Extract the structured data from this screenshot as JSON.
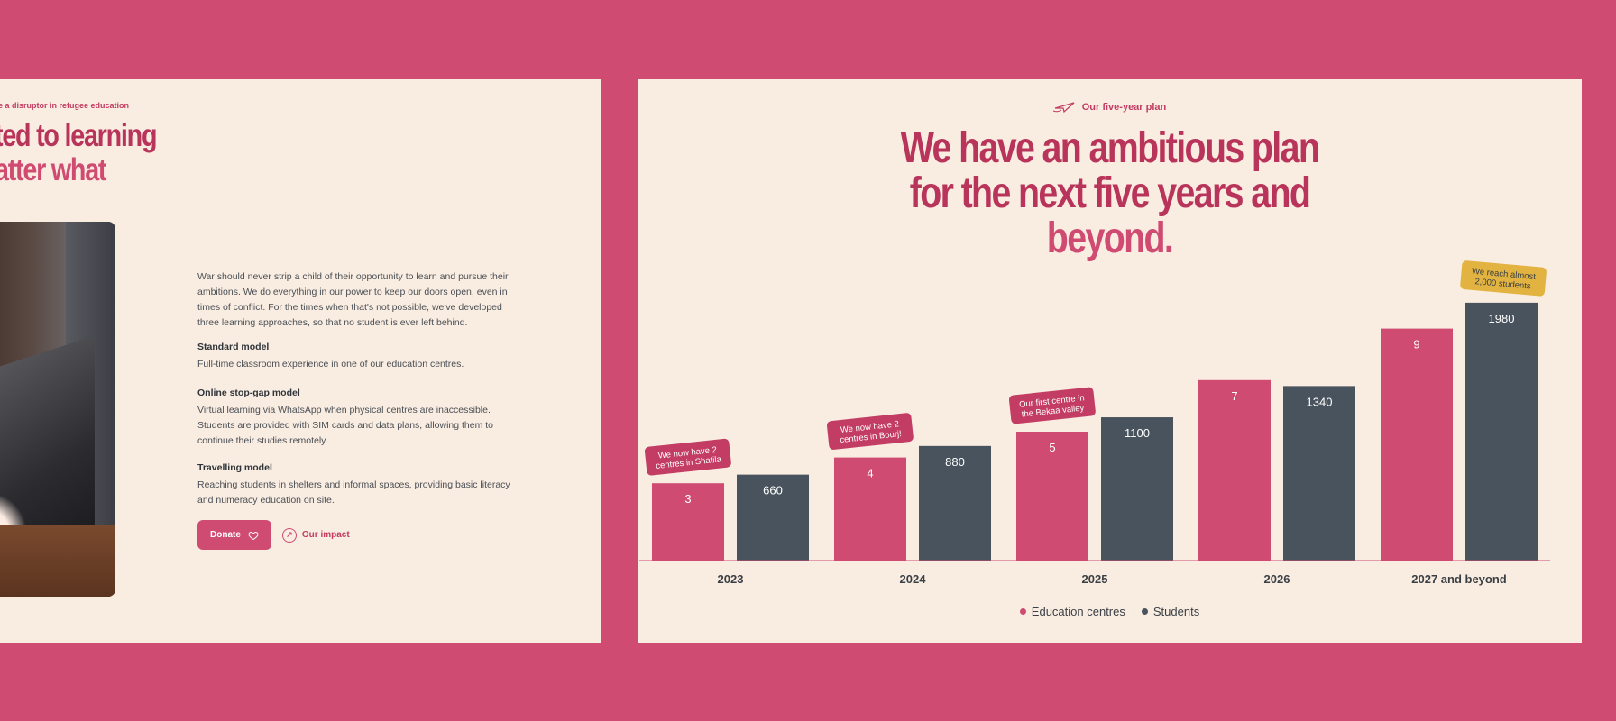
{
  "left": {
    "eyebrow": "e a disruptor in refugee education",
    "heading_line1": "ted to learning",
    "heading_line2": "atter what",
    "intro": "War should never strip a child of their opportunity to learn and pursue their ambitions. We do everything in our power to keep our doors open, even in times of conflict. For the times when that's not possible, we've developed three learning approaches, so that no student is ever left behind.",
    "models": [
      {
        "title": "Standard model",
        "text": "Full-time classroom experience in one of our education centres."
      },
      {
        "title": "Online stop-gap model",
        "text": "Virtual learning via WhatsApp when physical centres are inaccessible. Students are provided with SIM cards and data plans, allowing them to continue their studies remotely."
      },
      {
        "title": "Travelling model",
        "text": "Reaching students in shelters and informal spaces, providing basic literacy and numeracy education on site."
      }
    ],
    "donate_label": "Donate",
    "impact_label": "Our impact"
  },
  "right": {
    "eyebrow": "Our five-year plan",
    "heading_line1": "We have an ambitious plan",
    "heading_line2": "for the next five years and",
    "heading_line3": "beyond."
  },
  "colors": {
    "background": "#d04b72",
    "panel": "#f9ece1",
    "centres": "#d04b72",
    "students": "#48535d",
    "callout_pink": "#c23c63",
    "callout_gold": "#e2b340"
  },
  "chart_data": {
    "type": "bar",
    "categories": [
      "2023",
      "2024",
      "2025",
      "2026",
      "2027 and beyond"
    ],
    "series": [
      {
        "name": "Education centres",
        "values": [
          3,
          4,
          5,
          7,
          9
        ]
      },
      {
        "name": "Students",
        "values": [
          660,
          880,
          1100,
          1340,
          1980
        ]
      }
    ],
    "annotations": [
      {
        "category": "2023",
        "series": "Education centres",
        "text": "We now have 2 centres in Shatila",
        "color": "pink"
      },
      {
        "category": "2024",
        "series": "Education centres",
        "text": "We now have 2 centres in Bourj!",
        "color": "pink"
      },
      {
        "category": "2025",
        "series": "Education centres",
        "text": "Our first centre in the Bekaa valley",
        "color": "pink"
      },
      {
        "category": "2027 and beyond",
        "series": "Students",
        "text": "We reach almost 2,000 students",
        "color": "gold"
      }
    ],
    "legend": "bottom-center",
    "grid": false
  }
}
